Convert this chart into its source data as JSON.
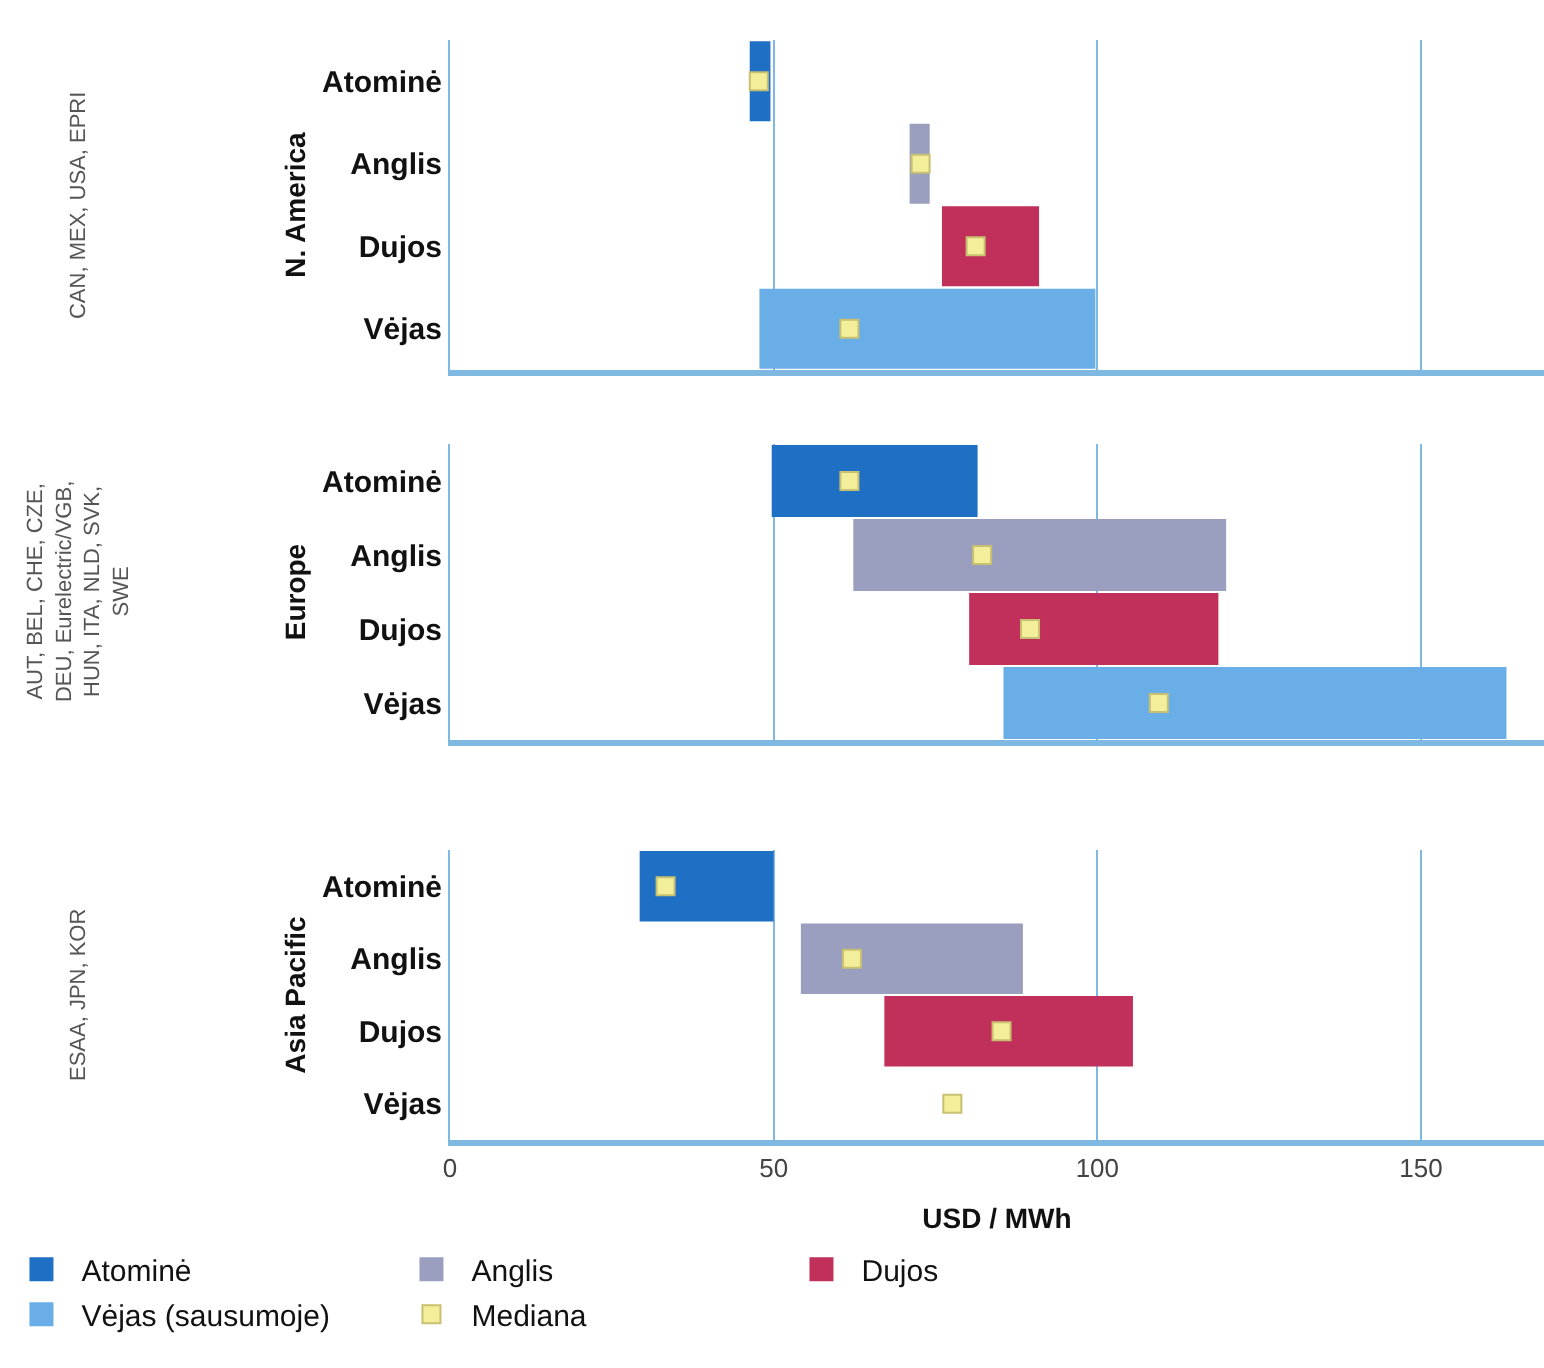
{
  "chart_data": [
    {
      "type": "bar",
      "orientation": "horizontal",
      "ylabel": "N. America",
      "annotations": [
        "CAN, MEX, USA, EPRI"
      ],
      "categories": [
        "Atominė",
        "Anglis",
        "Dujos",
        "Vėjas"
      ],
      "xlim": [
        0,
        169
      ],
      "xticks": [
        0,
        50,
        100,
        150
      ],
      "tick_labels": "y",
      "grid": "x",
      "series": [
        {
          "color": "#1f6fc5",
          "values": [
            3.2,
            null,
            null,
            null
          ],
          "base": [
            46.3,
            null,
            null,
            null
          ]
        },
        {
          "color": "#9a9fc0",
          "values": [
            null,
            3.1,
            null,
            null
          ],
          "base": [
            null,
            71,
            null,
            null
          ]
        },
        {
          "color": "#c0305a",
          "values": [
            null,
            null,
            15,
            null
          ],
          "base": [
            null,
            null,
            76,
            null
          ]
        },
        {
          "color": "#6aaee8",
          "values": [
            null,
            null,
            null,
            51.9
          ],
          "base": [
            null,
            null,
            null,
            47.8
          ]
        },
        {
          "type": "scatter",
          "marker": "square",
          "color": "#f2ee9a",
          "values": [
            47.7,
            72.7,
            81.2,
            61.7
          ]
        }
      ]
    },
    {
      "type": "bar",
      "orientation": "horizontal",
      "ylabel": "Europe",
      "annotations": [
        "AUT, BEL, CHE, CZE, DEU, Eurelectric/VGB, HUN, ITA, NLD, SVK, SWE"
      ],
      "categories": [
        "Atominė",
        "Anglis",
        "Dujos",
        "Vėjas"
      ],
      "xlim": [
        0,
        169
      ],
      "xticks": [
        0,
        50,
        100,
        150
      ],
      "tick_labels": "y",
      "grid": "x",
      "series": [
        {
          "color": "#1f6fc5",
          "values": [
            31.8,
            null,
            null,
            null
          ],
          "base": [
            49.7,
            null,
            null,
            null
          ]
        },
        {
          "color": "#9a9fc0",
          "values": [
            null,
            57.6,
            null,
            null
          ],
          "base": [
            null,
            62.3,
            null,
            null
          ]
        },
        {
          "color": "#c0305a",
          "values": [
            null,
            null,
            38.5,
            null
          ],
          "base": [
            null,
            null,
            80.2,
            null
          ]
        },
        {
          "color": "#6aaee8",
          "values": [
            null,
            null,
            null,
            77.7
          ],
          "base": [
            null,
            null,
            null,
            85.5
          ]
        },
        {
          "type": "scatter",
          "marker": "square",
          "color": "#f2ee9a",
          "values": [
            61.7,
            82.2,
            89.6,
            109.5
          ]
        }
      ]
    },
    {
      "type": "bar",
      "orientation": "horizontal",
      "ylabel": "Asia Pacific",
      "xlabel": "USD / MWh",
      "annotations": [
        "ESAA, JPN, KOR"
      ],
      "categories": [
        "Atominė",
        "Anglis",
        "Dujos",
        "Vėjas"
      ],
      "xlim": [
        0,
        169
      ],
      "xticks": [
        0,
        50,
        100,
        150
      ],
      "grid": "x",
      "legend": "bottom",
      "series": [
        {
          "name": "Atominė",
          "color": "#1f6fc5",
          "values": [
            20.7,
            null,
            null,
            null
          ],
          "base": [
            29.3,
            null,
            null,
            null
          ]
        },
        {
          "name": "Anglis",
          "color": "#9a9fc0",
          "values": [
            null,
            34.3,
            null,
            null
          ],
          "base": [
            null,
            54.2,
            null,
            null
          ]
        },
        {
          "name": "Dujos",
          "color": "#c0305a",
          "values": [
            null,
            null,
            38.4,
            null
          ],
          "base": [
            null,
            null,
            67.1,
            null
          ]
        },
        {
          "name": "Vėjas (sausumoje)",
          "color": "#6aaee8",
          "values": [
            null,
            null,
            null,
            null
          ],
          "base": [
            null,
            null,
            null,
            null
          ]
        },
        {
          "type": "scatter",
          "marker": "square",
          "name": "Mediana",
          "color": "#f2ee9a",
          "values": [
            33.3,
            62.1,
            85.2,
            77.6
          ]
        }
      ]
    }
  ]
}
